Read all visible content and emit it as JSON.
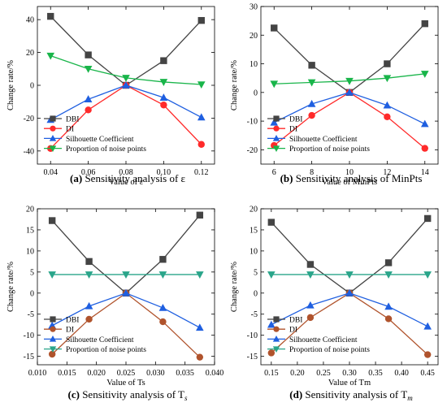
{
  "figure": {
    "colors": {
      "DBI": "#444444",
      "DI_red": "#ff2a2a",
      "DI_brown": "#b0532c",
      "Silhouette": "#1f5fe0",
      "Noise_green": "#19b54a",
      "Noise_teal": "#2aa58a"
    }
  },
  "chart_data": [
    {
      "id": "a",
      "type": "line",
      "caption_prefix": "(a)",
      "caption_text": "Sensitivity analysis of ε",
      "xlabel": "Value of ε",
      "ylabel": "Change rate/%",
      "x": [
        0.04,
        0.06,
        0.08,
        0.1,
        0.12
      ],
      "xticks": [
        "0.04",
        "0.06",
        "0.08",
        "0.10",
        "0.12"
      ],
      "xlim": [
        0.033,
        0.127
      ],
      "ylim": [
        -48,
        48
      ],
      "yticks": [
        -40,
        -20,
        0,
        20,
        40
      ],
      "legend_position": "bottom-left",
      "series": [
        {
          "name": "DBI",
          "marker": "square",
          "color": "#444444",
          "values": [
            42,
            18.5,
            0,
            15,
            39.5
          ]
        },
        {
          "name": "DI",
          "marker": "circle",
          "color": "#ff2a2a",
          "values": [
            -38.5,
            -15,
            0,
            -12,
            -36
          ]
        },
        {
          "name": "Silhouette Coefficient",
          "marker": "triangle-up",
          "color": "#1f5fe0",
          "values": [
            -21,
            -8.5,
            0,
            -7.5,
            -19.5
          ]
        },
        {
          "name": "Proportion of noise points",
          "marker": "triangle-down",
          "color": "#19b54a",
          "values": [
            18,
            10,
            4.5,
            2,
            0.5
          ]
        }
      ]
    },
    {
      "id": "b",
      "type": "line",
      "caption_prefix": "(b)",
      "caption_text": "Sensitivity analysis of MinPts",
      "xlabel": "Value of MinPts",
      "ylabel": "Change rate/%",
      "x": [
        6,
        8,
        10,
        12,
        14
      ],
      "xticks": [
        "6",
        "8",
        "10",
        "12",
        "14"
      ],
      "xlim": [
        5.3,
        14.7
      ],
      "ylim": [
        -25,
        30
      ],
      "yticks": [
        -20,
        -10,
        0,
        10,
        20,
        30
      ],
      "legend_position": "bottom-left",
      "series": [
        {
          "name": "DBI",
          "marker": "square",
          "color": "#444444",
          "values": [
            22.5,
            9.5,
            0,
            10,
            24
          ]
        },
        {
          "name": "DI",
          "marker": "circle",
          "color": "#ff2a2a",
          "values": [
            -18.5,
            -8,
            0,
            -8.5,
            -19.5
          ]
        },
        {
          "name": "Silhouette Coefficient",
          "marker": "triangle-up",
          "color": "#1f5fe0",
          "values": [
            -10.5,
            -4,
            0,
            -4.5,
            -11
          ]
        },
        {
          "name": "Proportion of noise points",
          "marker": "triangle-down",
          "color": "#19b54a",
          "values": [
            3,
            3.5,
            4,
            5,
            6.5
          ]
        }
      ]
    },
    {
      "id": "c",
      "type": "line",
      "caption_prefix": "(c)",
      "caption_text": "Sensitivity analysis of T",
      "caption_sub": "s",
      "xlabel": "Value of Ts",
      "ylabel": "Change rate/%",
      "x": [
        0.0125,
        0.01875,
        0.025,
        0.03125,
        0.0375
      ],
      "xticks": [
        "0.010",
        "0.015",
        "0.020",
        "0.025",
        "0.030",
        "0.035",
        "0.040"
      ],
      "xtick_values": [
        0.01,
        0.015,
        0.02,
        0.025,
        0.03,
        0.035,
        0.04
      ],
      "xlim": [
        0.01,
        0.04
      ],
      "ylim": [
        -17,
        20
      ],
      "yticks": [
        -15,
        -10,
        -5,
        0,
        5,
        10,
        15,
        20
      ],
      "legend_position": "bottom-left",
      "series": [
        {
          "name": "DBI",
          "marker": "square",
          "color": "#444444",
          "values": [
            17.2,
            7.5,
            0,
            8,
            18.5
          ]
        },
        {
          "name": "DI",
          "marker": "circle",
          "color": "#b0532c",
          "values": [
            -14.5,
            -6.2,
            0,
            -6.8,
            -15.2
          ]
        },
        {
          "name": "Silhouette Coefficient",
          "marker": "triangle-up",
          "color": "#1f5fe0",
          "values": [
            -7.7,
            -3.1,
            0,
            -3.5,
            -8.2
          ]
        },
        {
          "name": "Proportion of noise points",
          "marker": "triangle-down",
          "color": "#2aa58a",
          "values": [
            4.4,
            4.4,
            4.4,
            4.4,
            4.4
          ]
        }
      ]
    },
    {
      "id": "d",
      "type": "line",
      "caption_prefix": "(d)",
      "caption_text": "Sensitivity analysis of T",
      "caption_sub": "m",
      "xlabel": "Value of Tm",
      "ylabel": "Change rate/%",
      "x": [
        0.15,
        0.225,
        0.3,
        0.375,
        0.45
      ],
      "xticks": [
        "0.15",
        "0.20",
        "0.25",
        "0.30",
        "0.35",
        "0.40",
        "0.45"
      ],
      "xtick_values": [
        0.15,
        0.2,
        0.25,
        0.3,
        0.35,
        0.4,
        0.45
      ],
      "xlim": [
        0.13,
        0.47
      ],
      "ylim": [
        -17,
        20
      ],
      "yticks": [
        -15,
        -10,
        -5,
        0,
        5,
        10,
        15,
        20
      ],
      "legend_position": "bottom-left",
      "series": [
        {
          "name": "DBI",
          "marker": "square",
          "color": "#444444",
          "values": [
            16.8,
            6.8,
            0,
            7.2,
            17.7
          ]
        },
        {
          "name": "DI",
          "marker": "circle",
          "color": "#b0532c",
          "values": [
            -14.2,
            -5.8,
            0,
            -6.1,
            -14.6
          ]
        },
        {
          "name": "Silhouette Coefficient",
          "marker": "triangle-up",
          "color": "#1f5fe0",
          "values": [
            -7.5,
            -2.9,
            0,
            -3.2,
            -7.9
          ]
        },
        {
          "name": "Proportion of noise points",
          "marker": "triangle-down",
          "color": "#2aa58a",
          "values": [
            4.4,
            4.4,
            4.4,
            4.4,
            4.4
          ]
        }
      ]
    }
  ]
}
